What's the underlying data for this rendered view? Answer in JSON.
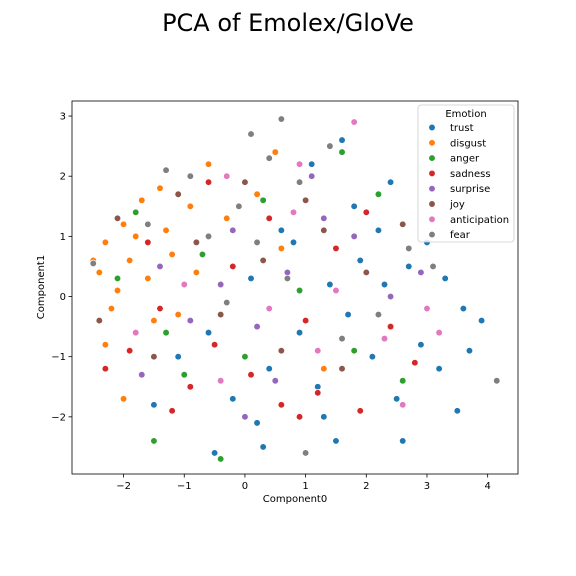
{
  "chart_data": {
    "type": "scatter",
    "title": "PCA of Emolex/GloVe",
    "xlabel": "Component0",
    "ylabel": "Component1",
    "xlim": [
      -2.85,
      4.5
    ],
    "ylim": [
      -2.95,
      3.25
    ],
    "xticks": [
      -2,
      -1,
      0,
      1,
      2,
      3,
      4
    ],
    "yticks": [
      -2,
      -1,
      0,
      1,
      2,
      3
    ],
    "grid": false,
    "legend": {
      "title": "Emotion",
      "placement": "top-right"
    },
    "series": [
      {
        "name": "trust",
        "color": "#1f77b4",
        "points": [
          [
            1.6,
            2.6
          ],
          [
            1.1,
            2.2
          ],
          [
            2.4,
            1.9
          ],
          [
            3.0,
            0.9
          ],
          [
            3.3,
            0.3
          ],
          [
            3.6,
            -0.2
          ],
          [
            3.9,
            -0.4
          ],
          [
            3.5,
            -1.9
          ],
          [
            2.6,
            -2.4
          ],
          [
            1.5,
            -2.4
          ],
          [
            0.3,
            -2.5
          ],
          [
            -0.5,
            -2.6
          ],
          [
            1.8,
            1.5
          ],
          [
            2.2,
            1.1
          ],
          [
            2.7,
            0.5
          ],
          [
            1.4,
            0.2
          ],
          [
            0.9,
            -0.6
          ],
          [
            0.4,
            -1.2
          ],
          [
            1.2,
            -1.5
          ],
          [
            2.1,
            -1.0
          ],
          [
            2.9,
            -0.8
          ],
          [
            3.2,
            -1.2
          ],
          [
            -0.2,
            -1.7
          ],
          [
            -1.5,
            -1.8
          ],
          [
            0.6,
            1.1
          ],
          [
            1.9,
            0.6
          ],
          [
            0.1,
            0.3
          ],
          [
            -0.6,
            -0.6
          ],
          [
            2.5,
            -1.7
          ],
          [
            3.7,
            -0.9
          ],
          [
            1.3,
            -2.0
          ],
          [
            0.8,
            0.9
          ],
          [
            1.7,
            -0.3
          ],
          [
            2.3,
            0.2
          ],
          [
            -1.1,
            -1.0
          ],
          [
            0.2,
            -2.1
          ]
        ]
      },
      {
        "name": "disgust",
        "color": "#ff7f0e",
        "points": [
          [
            -2.3,
            0.9
          ],
          [
            -2.0,
            1.2
          ],
          [
            -1.7,
            1.6
          ],
          [
            -1.4,
            1.8
          ],
          [
            -2.4,
            0.4
          ],
          [
            -2.2,
            -0.2
          ],
          [
            -1.9,
            0.6
          ],
          [
            -1.6,
            0.3
          ],
          [
            -1.3,
            1.1
          ],
          [
            -0.9,
            1.5
          ],
          [
            -0.6,
            2.2
          ],
          [
            -2.3,
            -0.8
          ],
          [
            -2.0,
            -1.7
          ],
          [
            -1.2,
            0.7
          ],
          [
            -0.3,
            1.3
          ],
          [
            0.2,
            1.7
          ],
          [
            -1.8,
            1.0
          ],
          [
            -2.1,
            0.1
          ],
          [
            -1.5,
            -0.4
          ],
          [
            -0.8,
            0.4
          ],
          [
            0.5,
            2.4
          ],
          [
            1.0,
            1.6
          ],
          [
            -2.5,
            0.6
          ],
          [
            -1.1,
            -0.3
          ],
          [
            0.6,
            0.8
          ],
          [
            1.3,
            -1.2
          ]
        ]
      },
      {
        "name": "anger",
        "color": "#2ca02c",
        "points": [
          [
            -1.5,
            -2.4
          ],
          [
            -0.4,
            -2.7
          ],
          [
            1.6,
            2.4
          ],
          [
            -2.1,
            0.3
          ],
          [
            -1.0,
            -1.3
          ],
          [
            0.3,
            1.6
          ],
          [
            1.8,
            -0.9
          ],
          [
            2.6,
            -1.4
          ],
          [
            -0.7,
            0.7
          ],
          [
            0.9,
            0.1
          ],
          [
            -1.3,
            -0.6
          ],
          [
            2.2,
            1.7
          ],
          [
            0.0,
            -1.0
          ],
          [
            -1.8,
            1.4
          ]
        ]
      },
      {
        "name": "sadness",
        "color": "#d62728",
        "points": [
          [
            -2.3,
            -1.2
          ],
          [
            -1.9,
            -0.9
          ],
          [
            -1.4,
            -0.2
          ],
          [
            -0.9,
            -1.5
          ],
          [
            -0.5,
            -0.8
          ],
          [
            0.1,
            -1.3
          ],
          [
            0.6,
            -1.8
          ],
          [
            1.2,
            -1.6
          ],
          [
            1.9,
            -1.9
          ],
          [
            2.4,
            -0.5
          ],
          [
            0.9,
            -2.0
          ],
          [
            -0.2,
            0.5
          ],
          [
            -1.6,
            0.9
          ],
          [
            0.4,
            1.3
          ],
          [
            1.5,
            0.8
          ],
          [
            2.0,
            1.4
          ],
          [
            -1.2,
            -1.9
          ],
          [
            -0.6,
            1.9
          ],
          [
            1.0,
            -0.4
          ],
          [
            2.8,
            -1.1
          ]
        ]
      },
      {
        "name": "surprise",
        "color": "#9467bd",
        "points": [
          [
            -0.9,
            -0.4
          ],
          [
            -0.4,
            0.2
          ],
          [
            0.2,
            -0.5
          ],
          [
            0.7,
            0.4
          ],
          [
            1.3,
            1.3
          ],
          [
            1.8,
            1.0
          ],
          [
            -1.4,
            0.5
          ],
          [
            -0.2,
            1.1
          ],
          [
            2.4,
            0.0
          ],
          [
            0.5,
            -1.4
          ],
          [
            1.1,
            2.0
          ],
          [
            -1.7,
            -1.3
          ],
          [
            2.9,
            0.4
          ],
          [
            0.0,
            -2.0
          ]
        ]
      },
      {
        "name": "joy",
        "color": "#8c564b",
        "points": [
          [
            -2.1,
            1.3
          ],
          [
            -1.1,
            1.7
          ],
          [
            0.0,
            1.9
          ],
          [
            1.3,
            1.1
          ],
          [
            2.0,
            0.4
          ],
          [
            -0.4,
            -0.3
          ],
          [
            -1.5,
            -1.0
          ],
          [
            0.6,
            -0.9
          ],
          [
            1.6,
            -1.2
          ],
          [
            -0.8,
            0.9
          ],
          [
            0.3,
            0.6
          ],
          [
            2.6,
            1.2
          ],
          [
            -2.4,
            -0.4
          ],
          [
            1.0,
            1.6
          ]
        ]
      },
      {
        "name": "anticipation",
        "color": "#e377c2",
        "points": [
          [
            1.8,
            2.9
          ],
          [
            -0.3,
            2.0
          ],
          [
            0.8,
            1.4
          ],
          [
            1.5,
            0.1
          ],
          [
            2.3,
            -0.7
          ],
          [
            3.0,
            -0.2
          ],
          [
            -1.0,
            0.2
          ],
          [
            -0.4,
            -1.4
          ],
          [
            0.4,
            -0.2
          ],
          [
            1.2,
            -0.9
          ],
          [
            2.6,
            -1.8
          ],
          [
            0.9,
            2.2
          ],
          [
            3.2,
            -0.6
          ],
          [
            -1.8,
            -0.6
          ]
        ]
      },
      {
        "name": "fear",
        "color": "#7f7f7f",
        "points": [
          [
            0.6,
            2.95
          ],
          [
            0.1,
            2.7
          ],
          [
            -0.9,
            2.0
          ],
          [
            0.4,
            2.3
          ],
          [
            -0.1,
            1.5
          ],
          [
            -0.6,
            1.0
          ],
          [
            0.2,
            0.9
          ],
          [
            0.9,
            1.9
          ],
          [
            1.4,
            2.5
          ],
          [
            -1.3,
            2.1
          ],
          [
            -2.5,
            0.55
          ],
          [
            1.0,
            -2.6
          ],
          [
            1.6,
            -0.7
          ],
          [
            2.2,
            -0.3
          ],
          [
            4.15,
            -1.4
          ],
          [
            -0.3,
            -0.1
          ],
          [
            0.7,
            0.3
          ],
          [
            2.7,
            0.8
          ],
          [
            3.1,
            0.5
          ],
          [
            -1.6,
            1.2
          ]
        ]
      }
    ]
  }
}
